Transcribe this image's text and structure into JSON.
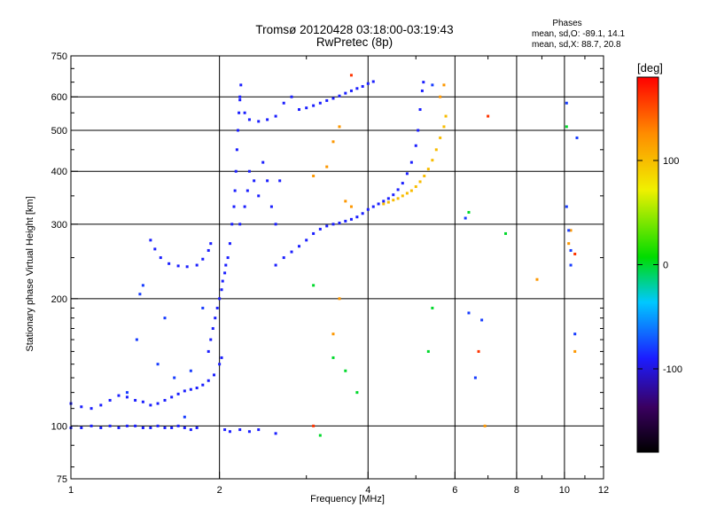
{
  "chart_data": {
    "type": "scatter",
    "title": "Tromsø 20120428 03:18:00-03:19:43",
    "subtitle": "RwPretec (8p)",
    "xlabel": "Frequency [MHz]",
    "ylabel": "Stationary phase Virtual Height [km]",
    "x_scale": "log",
    "y_scale": "log",
    "xlim": [
      1,
      12
    ],
    "ylim": [
      75,
      750
    ],
    "grid": true,
    "x_major_ticks": [
      1,
      2,
      4,
      6,
      8,
      10,
      12
    ],
    "x_tick_labels": [
      "1",
      "2",
      "4",
      "6",
      "8",
      "10",
      "12"
    ],
    "x_minor_ticks": [
      3,
      5,
      7,
      9,
      11
    ],
    "y_major_ticks": [
      75,
      100,
      200,
      300,
      400,
      500,
      600,
      750
    ],
    "y_tick_labels": [
      "75",
      "100",
      "200",
      "300",
      "400",
      "500",
      "600",
      "750"
    ],
    "y_minor_ticks": [
      80,
      90,
      110,
      120,
      130,
      140,
      150,
      160,
      170,
      180,
      190,
      250,
      350,
      450,
      550,
      650,
      700
    ],
    "phases_box": {
      "heading": "Phases",
      "line1": "mean, sd,O: -89.1, 14.1",
      "line2": "mean, sd,X:  88.7, 20.8"
    },
    "colorbar": {
      "label": "[deg]",
      "range": [
        -180,
        180
      ],
      "ticks": [
        -100,
        0,
        100
      ],
      "tick_labels": [
        "-100",
        "0",
        "100"
      ]
    },
    "series": [
      {
        "color_phase_deg": -89,
        "points": [
          [
            1.0,
            99
          ],
          [
            1.05,
            99
          ],
          [
            1.1,
            100
          ],
          [
            1.15,
            99
          ],
          [
            1.2,
            100
          ],
          [
            1.25,
            99
          ],
          [
            1.3,
            100
          ],
          [
            1.35,
            100
          ],
          [
            1.4,
            99
          ],
          [
            1.45,
            99
          ],
          [
            1.5,
            100
          ],
          [
            1.55,
            99
          ],
          [
            1.6,
            99
          ],
          [
            1.65,
            100
          ],
          [
            1.7,
            99
          ],
          [
            1.75,
            98
          ],
          [
            1.8,
            99
          ],
          [
            2.05,
            98
          ],
          [
            2.1,
            97
          ],
          [
            2.2,
            98
          ],
          [
            2.3,
            97
          ],
          [
            2.4,
            98
          ],
          [
            2.6,
            96
          ]
        ]
      },
      {
        "color_phase_deg": -89,
        "points": [
          [
            1.0,
            113
          ],
          [
            1.05,
            111
          ],
          [
            1.1,
            110
          ],
          [
            1.15,
            112
          ],
          [
            1.2,
            115
          ],
          [
            1.25,
            118
          ],
          [
            1.3,
            117
          ],
          [
            1.35,
            115
          ],
          [
            1.4,
            114
          ],
          [
            1.45,
            112
          ],
          [
            1.5,
            113
          ],
          [
            1.55,
            115
          ],
          [
            1.6,
            117
          ],
          [
            1.65,
            119
          ],
          [
            1.7,
            121
          ],
          [
            1.75,
            122
          ],
          [
            1.8,
            123
          ],
          [
            1.85,
            125
          ],
          [
            1.9,
            128
          ],
          [
            1.95,
            132
          ],
          [
            2.0,
            140
          ],
          [
            2.02,
            145
          ]
        ]
      },
      {
        "color_phase_deg": -89,
        "points": [
          [
            1.9,
            150
          ],
          [
            1.92,
            160
          ],
          [
            1.94,
            170
          ],
          [
            1.96,
            180
          ],
          [
            1.98,
            190
          ],
          [
            2.0,
            200
          ],
          [
            2.02,
            210
          ],
          [
            2.03,
            220
          ],
          [
            2.05,
            230
          ],
          [
            2.06,
            240
          ],
          [
            2.08,
            250
          ],
          [
            2.1,
            270
          ],
          [
            2.12,
            300
          ],
          [
            2.14,
            330
          ],
          [
            2.15,
            360
          ],
          [
            2.16,
            400
          ],
          [
            2.17,
            450
          ],
          [
            2.18,
            500
          ],
          [
            2.19,
            550
          ],
          [
            2.2,
            600
          ],
          [
            2.21,
            640
          ]
        ]
      },
      {
        "color_phase_deg": -89,
        "points": [
          [
            2.2,
            300
          ],
          [
            2.25,
            330
          ],
          [
            2.28,
            360
          ],
          [
            2.3,
            400
          ],
          [
            2.35,
            380
          ],
          [
            2.4,
            350
          ],
          [
            2.45,
            420
          ],
          [
            2.5,
            380
          ],
          [
            2.55,
            330
          ],
          [
            2.6,
            300
          ],
          [
            2.65,
            380
          ]
        ]
      },
      {
        "color_phase_deg": -89,
        "points": [
          [
            1.45,
            275
          ],
          [
            1.48,
            262
          ],
          [
            1.52,
            250
          ],
          [
            1.58,
            242
          ],
          [
            1.65,
            239
          ],
          [
            1.72,
            238
          ],
          [
            1.8,
            240
          ],
          [
            1.85,
            248
          ],
          [
            1.9,
            260
          ],
          [
            1.92,
            270
          ]
        ]
      },
      {
        "color_phase_deg": -89,
        "points": [
          [
            2.6,
            240
          ],
          [
            2.7,
            250
          ],
          [
            2.8,
            258
          ],
          [
            2.9,
            266
          ],
          [
            3.0,
            275
          ],
          [
            3.1,
            285
          ],
          [
            3.2,
            292
          ],
          [
            3.3,
            297
          ],
          [
            3.4,
            300
          ],
          [
            3.5,
            302
          ],
          [
            3.6,
            305
          ],
          [
            3.7,
            308
          ],
          [
            3.8,
            312
          ],
          [
            3.9,
            318
          ],
          [
            4.0,
            325
          ],
          [
            4.1,
            330
          ],
          [
            4.2,
            335
          ],
          [
            4.3,
            340
          ],
          [
            4.4,
            345
          ],
          [
            4.5,
            352
          ],
          [
            4.6,
            362
          ],
          [
            4.7,
            375
          ],
          [
            4.8,
            395
          ],
          [
            4.9,
            420
          ],
          [
            5.0,
            460
          ],
          [
            5.05,
            500
          ],
          [
            5.1,
            560
          ],
          [
            5.15,
            620
          ],
          [
            5.18,
            650
          ]
        ]
      },
      {
        "color_phase_deg": -89,
        "points": [
          [
            2.2,
            590
          ],
          [
            2.25,
            550
          ],
          [
            2.3,
            530
          ],
          [
            2.4,
            525
          ],
          [
            2.5,
            530
          ],
          [
            2.6,
            540
          ],
          [
            2.7,
            580
          ],
          [
            2.8,
            600
          ],
          [
            2.9,
            560
          ],
          [
            3.0,
            565
          ],
          [
            3.1,
            572
          ],
          [
            3.2,
            580
          ],
          [
            3.3,
            588
          ],
          [
            3.4,
            595
          ],
          [
            3.5,
            603
          ],
          [
            3.6,
            612
          ],
          [
            3.7,
            620
          ],
          [
            3.8,
            628
          ],
          [
            3.9,
            635
          ],
          [
            4.0,
            645
          ],
          [
            4.1,
            652
          ]
        ]
      },
      {
        "color_phase_deg": 100,
        "points": [
          [
            4.3,
            335
          ],
          [
            4.4,
            338
          ],
          [
            4.5,
            342
          ],
          [
            4.6,
            345
          ],
          [
            4.7,
            350
          ],
          [
            4.8,
            355
          ],
          [
            4.9,
            360
          ],
          [
            5.0,
            368
          ],
          [
            5.1,
            378
          ],
          [
            5.2,
            390
          ],
          [
            5.3,
            405
          ],
          [
            5.4,
            425
          ],
          [
            5.5,
            450
          ],
          [
            5.6,
            480
          ],
          [
            5.7,
            510
          ],
          [
            5.75,
            540
          ]
        ]
      },
      {
        "color_phase_deg": 120,
        "points": [
          [
            3.1,
            390
          ],
          [
            3.3,
            410
          ],
          [
            3.4,
            470
          ],
          [
            3.5,
            510
          ],
          [
            3.6,
            340
          ],
          [
            3.7,
            330
          ],
          [
            3.5,
            200
          ],
          [
            3.4,
            165
          ],
          [
            5.6,
            600
          ],
          [
            5.7,
            640
          ],
          [
            8.8,
            222
          ],
          [
            10.2,
            270
          ],
          [
            10.3,
            290
          ],
          [
            10.5,
            150
          ],
          [
            6.9,
            100
          ]
        ]
      },
      {
        "color_phase_deg": 0,
        "points": [
          [
            3.1,
            215
          ],
          [
            3.4,
            145
          ],
          [
            3.6,
            135
          ],
          [
            3.8,
            120
          ],
          [
            3.2,
            95
          ],
          [
            5.3,
            150
          ],
          [
            5.4,
            190
          ],
          [
            6.4,
            320
          ],
          [
            7.6,
            285
          ],
          [
            10.1,
            510
          ]
        ]
      },
      {
        "color_phase_deg": -80,
        "points": [
          [
            1.38,
            205
          ],
          [
            1.4,
            215
          ],
          [
            1.36,
            160
          ],
          [
            1.3,
            120
          ],
          [
            1.5,
            140
          ],
          [
            1.55,
            180
          ],
          [
            1.62,
            130
          ],
          [
            1.7,
            105
          ],
          [
            1.75,
            135
          ],
          [
            1.85,
            190
          ],
          [
            6.3,
            310
          ],
          [
            6.4,
            185
          ],
          [
            6.6,
            130
          ],
          [
            6.8,
            178
          ],
          [
            10.1,
            330
          ],
          [
            10.2,
            290
          ],
          [
            10.3,
            260
          ],
          [
            10.3,
            240
          ],
          [
            10.5,
            165
          ],
          [
            10.6,
            480
          ],
          [
            10.1,
            580
          ],
          [
            5.4,
            640
          ]
        ]
      },
      {
        "color_phase_deg": 160,
        "points": [
          [
            7.0,
            540
          ],
          [
            6.7,
            150
          ],
          [
            10.5,
            255
          ],
          [
            3.1,
            100
          ],
          [
            3.7,
            675
          ]
        ]
      }
    ]
  }
}
